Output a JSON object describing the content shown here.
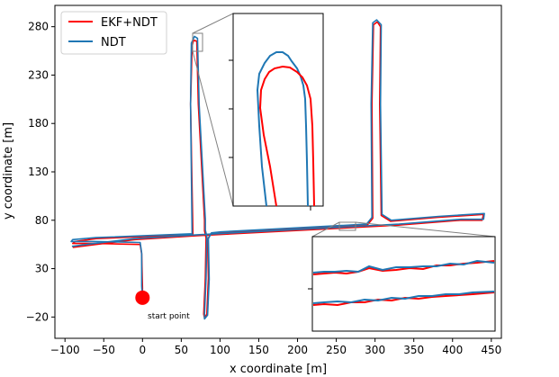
{
  "chart_data": {
    "type": "line",
    "xlabel": "x coordinate [m]",
    "ylabel": "y coordinate [m]",
    "xlim": [
      -113,
      463
    ],
    "ylim": [
      -42,
      302
    ],
    "xticks": [
      -100,
      -50,
      0,
      50,
      100,
      150,
      200,
      250,
      300,
      350,
      400,
      450
    ],
    "yticks": [
      -20,
      30,
      80,
      130,
      180,
      230,
      280
    ],
    "grid": false,
    "legend_position": "top-left",
    "series": [
      {
        "name": "EKF+NDT",
        "color": "#ff0000",
        "x": [
          0,
          0,
          -1,
          -3,
          -60,
          -90,
          -87,
          -60,
          65,
          62,
          64,
          66,
          70,
          72,
          80,
          80,
          82,
          81,
          79,
          80,
          83,
          85,
          84,
          88,
          100,
          290,
          297,
          296,
          298,
          303,
          307,
          306,
          308,
          320,
          380,
          440,
          438,
          410,
          330,
          70,
          -10,
          -60,
          -90
        ],
        "y": [
          0,
          10,
          45,
          55,
          56,
          56,
          58,
          61,
          65,
          200,
          260,
          266,
          265,
          200,
          80,
          69,
          62,
          20,
          -17,
          -21,
          -17,
          20,
          60,
          66,
          67,
          75,
          82,
          200,
          282,
          285,
          280,
          200,
          85,
          79,
          83,
          86,
          80,
          80,
          75,
          64,
          60,
          55,
          52
        ]
      },
      {
        "name": "NDT",
        "color": "#1f77b4",
        "x": [
          0,
          -1,
          -1,
          -3,
          -60,
          -92,
          -90,
          -60,
          64,
          62,
          63,
          67,
          71,
          73,
          81,
          81,
          83,
          82,
          80,
          80,
          84,
          86,
          85,
          89,
          101,
          289,
          296,
          295,
          297,
          302,
          308,
          307,
          309,
          321,
          382,
          441,
          440,
          411,
          331,
          71,
          -10,
          -62,
          -91
        ],
        "y": [
          0,
          12,
          46,
          57,
          58,
          58,
          60,
          62,
          66,
          200,
          263,
          270,
          268,
          200,
          81,
          70,
          63,
          20,
          -17,
          -22,
          -18,
          19,
          61,
          67,
          68,
          76,
          83,
          200,
          284,
          287,
          282,
          200,
          86,
          80,
          84,
          87,
          81,
          81,
          76,
          65,
          61,
          56,
          53
        ]
      }
    ],
    "start_marker": {
      "x": 0,
      "y": 0,
      "color": "#ff0000"
    },
    "annotations": [
      {
        "text": "start point",
        "x": 0,
        "y": -17
      }
    ]
  }
}
